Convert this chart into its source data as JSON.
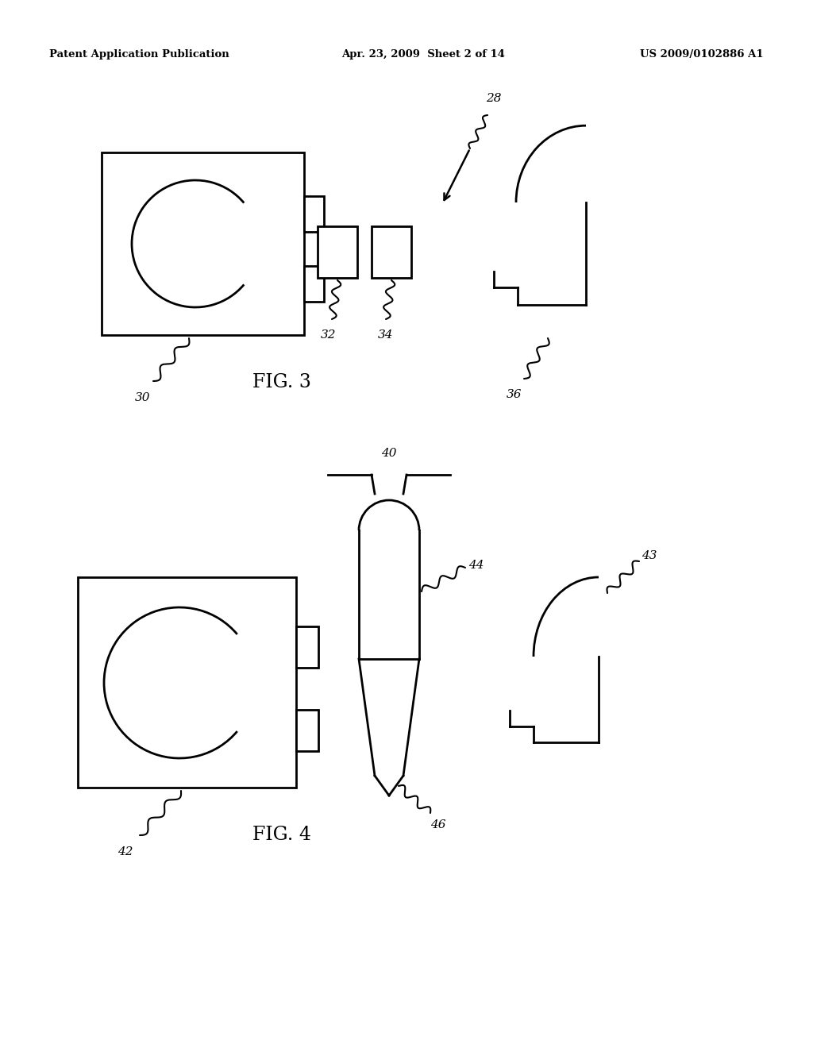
{
  "background_color": "#ffffff",
  "line_color": "#000000",
  "header_left": "Patent Application Publication",
  "header_center": "Apr. 23, 2009  Sheet 2 of 14",
  "header_right": "US 2009/0102886 A1",
  "fig3_label": "FIG. 3",
  "fig4_label": "FIG. 4",
  "label_28": "28",
  "label_30": "30",
  "label_32": "32",
  "label_34": "34",
  "label_36": "36",
  "label_40": "40",
  "label_42": "42",
  "label_43": "43",
  "label_44": "44",
  "label_46": "46"
}
